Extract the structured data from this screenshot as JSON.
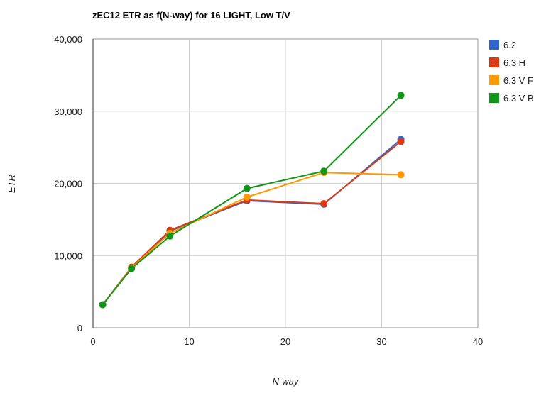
{
  "chart_data": {
    "type": "line",
    "title": "zEC12 ETR as f(N-way) for 16 LIGHT, Low T/V",
    "xlabel": "N-way",
    "ylabel": "ETR",
    "xlim": [
      0,
      40
    ],
    "ylim": [
      0,
      40000
    ],
    "x_ticks": [
      0,
      10,
      20,
      30,
      40
    ],
    "x_tick_labels": [
      "0",
      "10",
      "20",
      "30",
      "40"
    ],
    "y_ticks": [
      0,
      10000,
      20000,
      30000,
      40000
    ],
    "y_tick_labels": [
      "0",
      "10,000",
      "20,000",
      "30,000",
      "40,000"
    ],
    "grid": true,
    "legend_position": "right",
    "series": [
      {
        "name": "6.2",
        "color": "#3366cc",
        "points": [
          [
            1,
            3200
          ],
          [
            4,
            8300
          ],
          [
            8,
            13400
          ],
          [
            16,
            17600
          ],
          [
            24,
            17100
          ],
          [
            32,
            26100
          ]
        ]
      },
      {
        "name": "6.3 H",
        "color": "#dc3912",
        "points": [
          [
            1,
            3200
          ],
          [
            4,
            8400
          ],
          [
            8,
            13500
          ],
          [
            16,
            17700
          ],
          [
            24,
            17200
          ],
          [
            32,
            25800
          ]
        ]
      },
      {
        "name": "6.3 V F",
        "color": "#ff9900",
        "points": [
          [
            1,
            3200
          ],
          [
            4,
            8300
          ],
          [
            8,
            13100
          ],
          [
            16,
            18100
          ],
          [
            24,
            21500
          ],
          [
            32,
            21200
          ]
        ]
      },
      {
        "name": "6.3 V B",
        "color": "#109618",
        "points": [
          [
            1,
            3200
          ],
          [
            4,
            8200
          ],
          [
            8,
            12700
          ],
          [
            16,
            19300
          ],
          [
            24,
            21700
          ],
          [
            32,
            32200
          ]
        ]
      }
    ]
  }
}
